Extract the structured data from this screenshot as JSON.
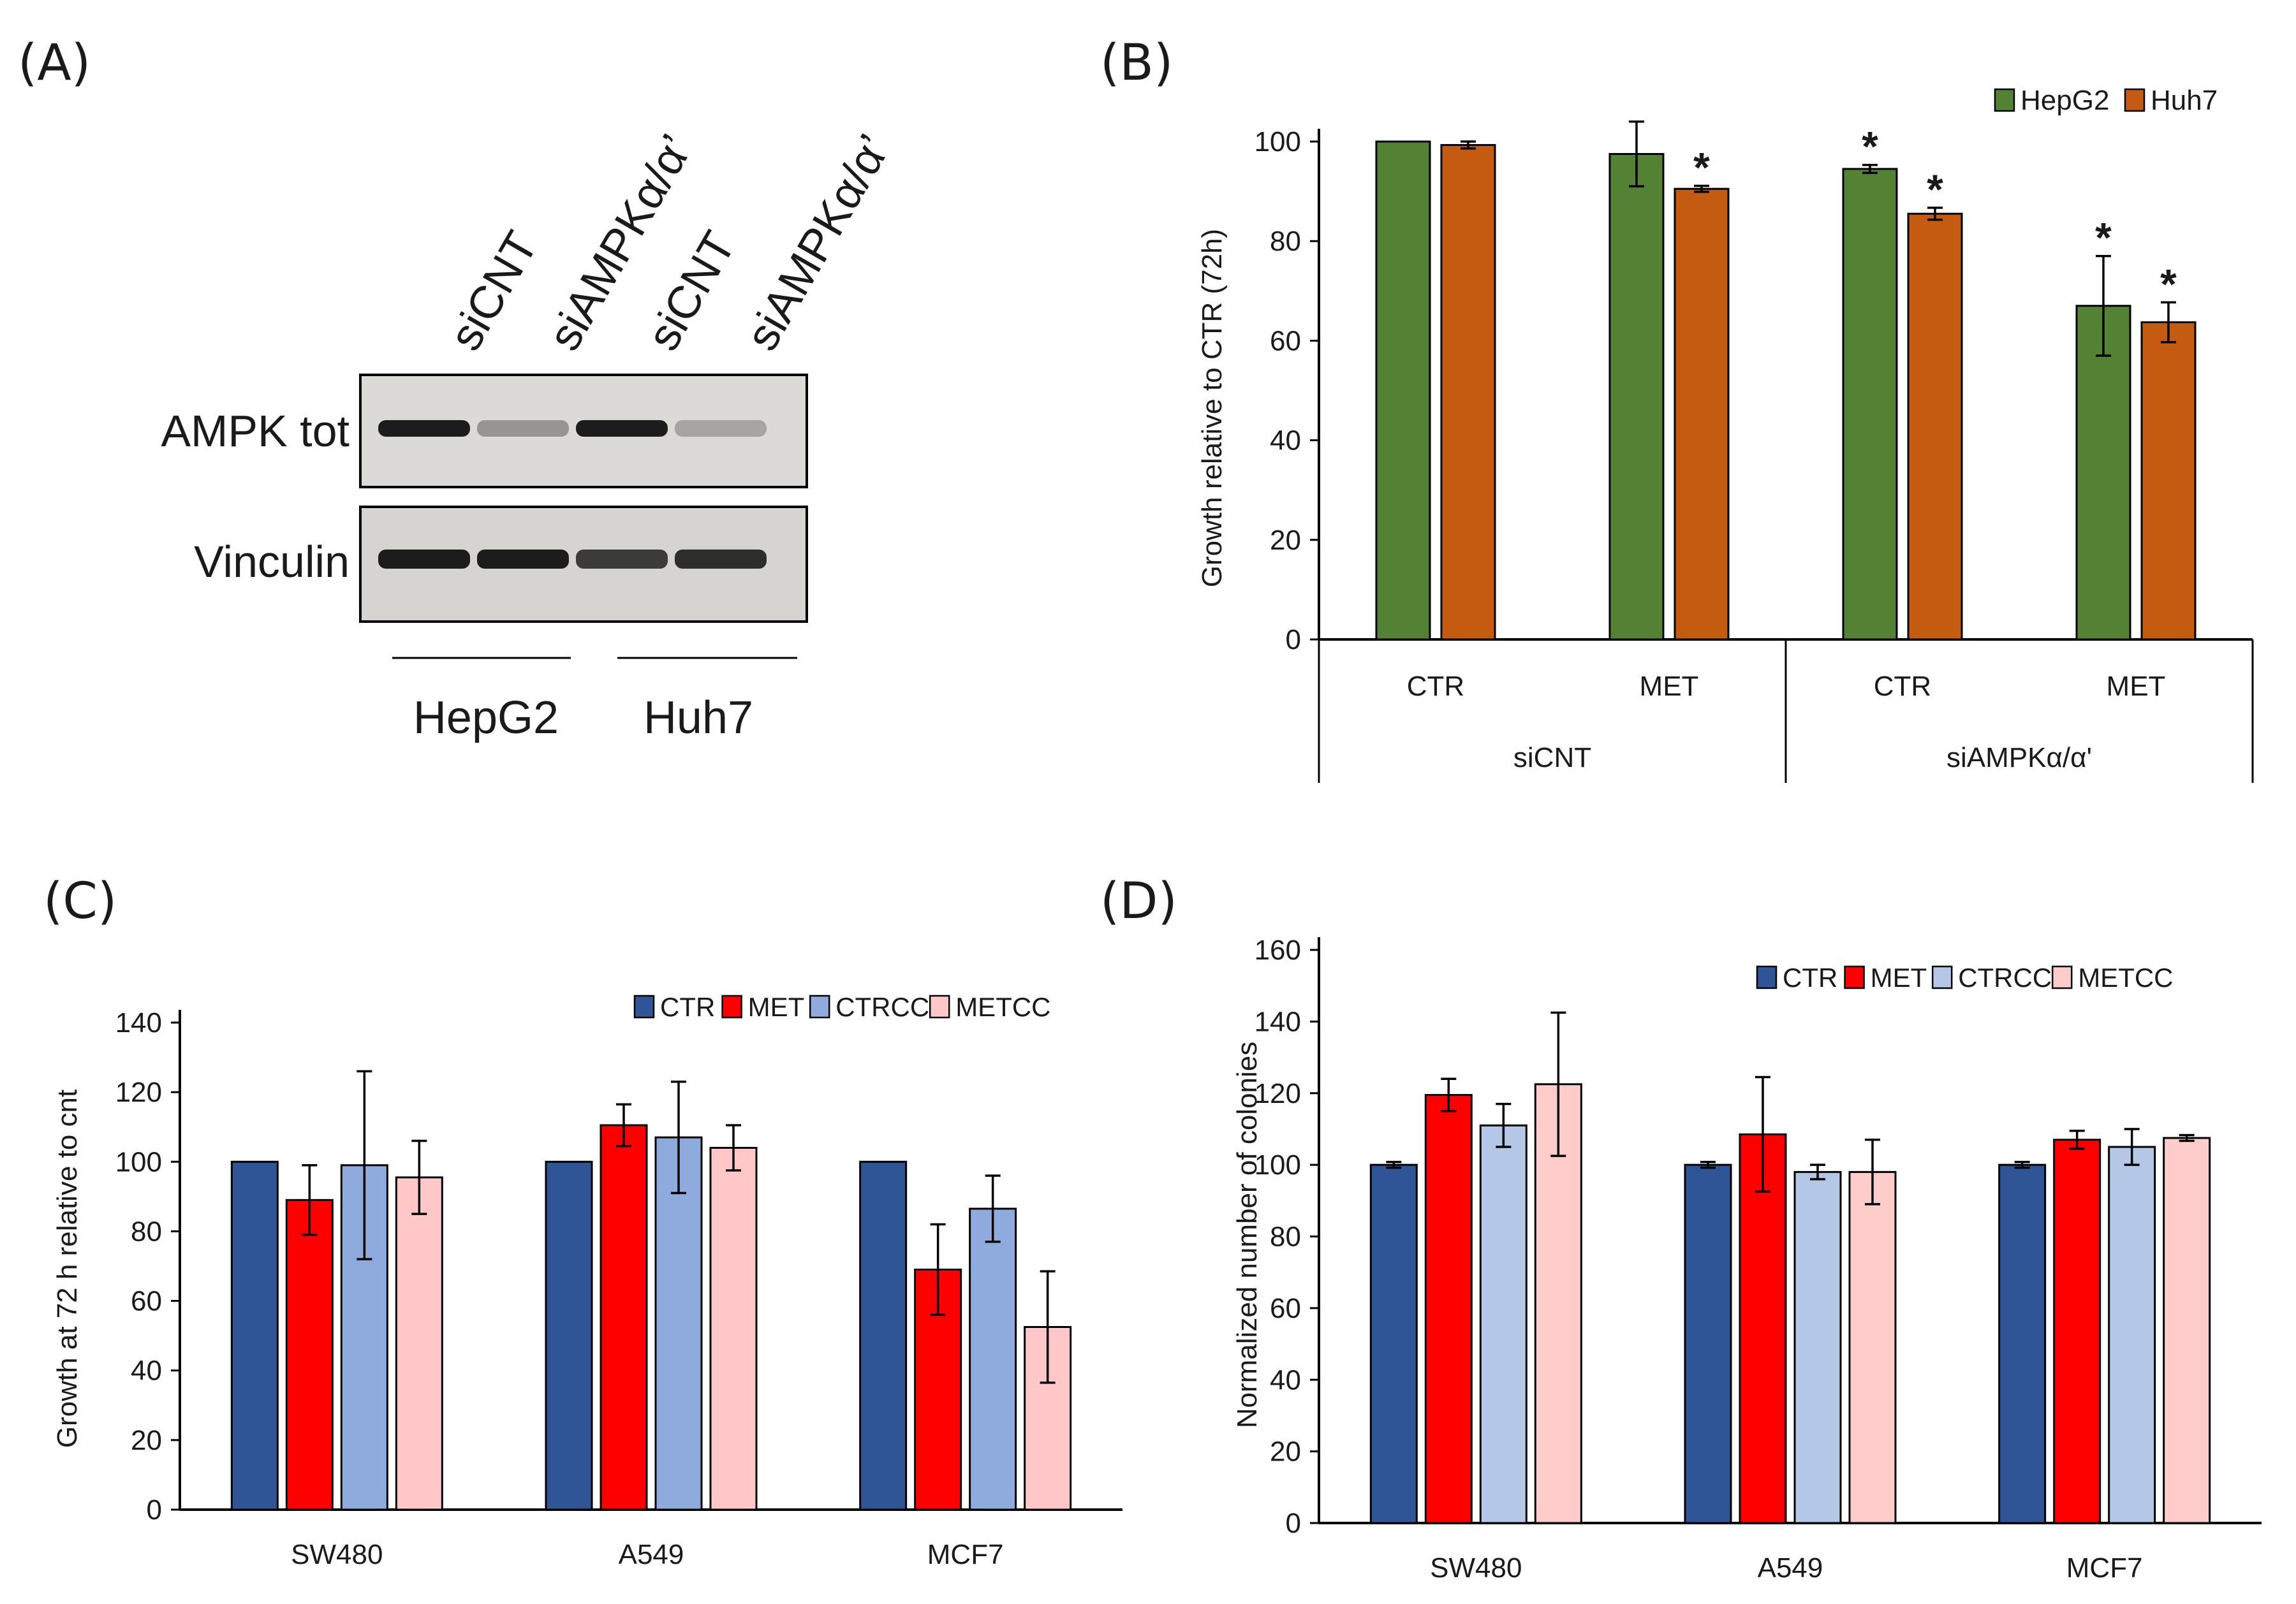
{
  "panel_a": {
    "letter": "(A)",
    "lanes": [
      "siCNT",
      "siAMPKα/α’",
      "siCNT",
      "siAMPKα/α’"
    ],
    "blots": [
      "AMPK tot",
      "Vinculin"
    ],
    "groups": [
      "HepG2",
      "Huh7"
    ],
    "band_intensity": {
      "AMPK tot": [
        1.0,
        0.25,
        1.0,
        0.15
      ],
      "Vinculin": [
        1.0,
        1.0,
        0.8,
        0.9
      ]
    }
  },
  "chart_data": [
    {
      "panel": "(B)",
      "type": "bar",
      "title": "",
      "ylabel": "Growth relative to CTR (72h)",
      "ylim": [
        0,
        100
      ],
      "yticks": [
        0,
        20,
        40,
        60,
        80,
        100
      ],
      "categories": [
        "CTR",
        "MET",
        "CTR",
        "MET"
      ],
      "groups": [
        {
          "label": "siCNT",
          "span": [
            0,
            1
          ]
        },
        {
          "label": "siAMPKα/α'",
          "span": [
            2,
            3
          ]
        }
      ],
      "series": [
        {
          "name": "HepG2",
          "color": "#548235",
          "values": [
            100,
            97.5,
            94.5,
            67
          ],
          "errors": [
            0,
            6.5,
            0.8,
            10
          ],
          "significant": [
            false,
            false,
            true,
            true
          ]
        },
        {
          "name": "Huh7",
          "color": "#C55A11",
          "values": [
            99.3,
            90.5,
            85.5,
            63.7
          ],
          "errors": [
            0.7,
            0.6,
            1.2,
            4
          ],
          "significant": [
            false,
            true,
            true,
            true
          ]
        }
      ],
      "significance_mark": "*",
      "legend": "top-right"
    },
    {
      "panel": "(C)",
      "type": "bar",
      "title": "",
      "ylabel": "Growth at 72 h relative to cnt",
      "ylim": [
        0,
        140
      ],
      "yticks": [
        0,
        20,
        40,
        60,
        80,
        100,
        120,
        140
      ],
      "categories": [
        "SW480",
        "A549",
        "MCF7"
      ],
      "series": [
        {
          "name": "CTR",
          "color": "#2F5597",
          "values": [
            100,
            100,
            100
          ],
          "errors": [
            0,
            0,
            0
          ]
        },
        {
          "name": "MET",
          "color": "#FF0000",
          "values": [
            89,
            110.5,
            69
          ],
          "errors": [
            10,
            6,
            13
          ]
        },
        {
          "name": "CTRCC",
          "color": "#8FAADC",
          "values": [
            99,
            107,
            86.5
          ],
          "errors": [
            27,
            16,
            9.5
          ]
        },
        {
          "name": "METCC",
          "color": "#FFC7C7",
          "values": [
            95.5,
            104,
            52.5
          ],
          "errors": [
            10.5,
            6.5,
            16
          ]
        }
      ],
      "legend": "top-right"
    },
    {
      "panel": "(D)",
      "type": "bar",
      "title": "",
      "ylabel": "Normalized number of colonies",
      "ylim": [
        0,
        160
      ],
      "yticks": [
        0,
        20,
        40,
        60,
        80,
        100,
        120,
        140,
        160
      ],
      "categories": [
        "SW480",
        "A549",
        "MCF7"
      ],
      "series": [
        {
          "name": "CTR",
          "color": "#2F5597",
          "values": [
            100,
            100,
            100
          ],
          "errors": [
            0.8,
            0.8,
            0.8
          ]
        },
        {
          "name": "MET",
          "color": "#FF0000",
          "values": [
            119.5,
            108.5,
            107
          ],
          "errors": [
            4.5,
            16,
            2.5
          ]
        },
        {
          "name": "CTRCC",
          "color": "#B4C7E7",
          "values": [
            111,
            98,
            105
          ],
          "errors": [
            6,
            2,
            5
          ]
        },
        {
          "name": "METCC",
          "color": "#FFCCCC",
          "values": [
            122.5,
            98,
            107.5
          ],
          "errors": [
            20,
            9,
            0.8
          ]
        }
      ],
      "legend": "top-right"
    }
  ]
}
